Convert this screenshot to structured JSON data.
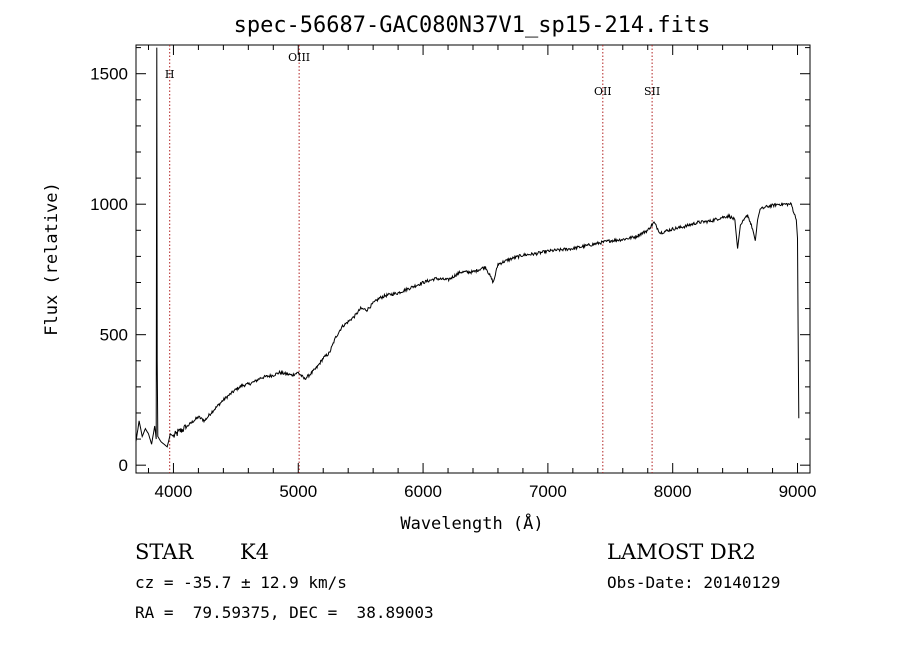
{
  "chart_data": {
    "type": "line",
    "title": "spec-56687-GAC080N37V1_sp15-214.fits",
    "xlabel": "Wavelength (Å)",
    "ylabel": "Flux (relative)",
    "xlim": [
      3700,
      9100
    ],
    "ylim": [
      -30,
      1610
    ],
    "xticks": [
      4000,
      5000,
      6000,
      7000,
      8000,
      9000
    ],
    "yticks": [
      0,
      500,
      1000,
      1500
    ],
    "grid": false,
    "series": [
      {
        "x": [
          3700,
          3725,
          3750,
          3775,
          3800,
          3825,
          3850,
          3862,
          3867,
          3870,
          3875,
          3900,
          3925,
          3950,
          3975,
          4000,
          4050,
          4100,
          4150,
          4200,
          4250,
          4300,
          4350,
          4400,
          4450,
          4500,
          4550,
          4600,
          4650,
          4700,
          4750,
          4800,
          4850,
          4900,
          4950,
          5000,
          5050,
          5100,
          5150,
          5200,
          5250,
          5300,
          5350,
          5400,
          5450,
          5500,
          5550,
          5600,
          5650,
          5700,
          5750,
          5800,
          5850,
          5900,
          5950,
          6000,
          6100,
          6200,
          6300,
          6400,
          6500,
          6563,
          6600,
          6700,
          6800,
          6900,
          7000,
          7100,
          7200,
          7300,
          7400,
          7500,
          7600,
          7700,
          7800,
          7850,
          7900,
          8000,
          8100,
          8200,
          8300,
          8400,
          8450,
          8498,
          8520,
          8542,
          8560,
          8600,
          8640,
          8662,
          8680,
          8700,
          8750,
          8800,
          8850,
          8900,
          8950,
          8990,
          9000,
          9010
        ],
        "y": [
          90,
          170,
          110,
          140,
          120,
          80,
          150,
          100,
          1600,
          400,
          110,
          90,
          80,
          70,
          120,
          110,
          130,
          145,
          165,
          185,
          170,
          200,
          225,
          250,
          270,
          290,
          305,
          310,
          320,
          335,
          340,
          345,
          355,
          350,
          345,
          355,
          330,
          350,
          375,
          410,
          430,
          490,
          530,
          550,
          570,
          600,
          595,
          620,
          640,
          650,
          655,
          660,
          670,
          680,
          690,
          700,
          715,
          710,
          740,
          740,
          760,
          700,
          770,
          790,
          805,
          810,
          820,
          825,
          830,
          840,
          850,
          860,
          865,
          875,
          900,
          930,
          890,
          905,
          915,
          930,
          935,
          950,
          955,
          940,
          830,
          920,
          930,
          960,
          905,
          860,
          940,
          980,
          990,
          995,
          1000,
          1000,
          1000,
          940,
          870,
          180
        ]
      }
    ],
    "annotations": [
      {
        "label": "H",
        "x": 3970
      },
      {
        "label": "OIII",
        "x": 5007
      },
      {
        "label": "OII",
        "x": 7440
      },
      {
        "label": "SII",
        "x": 7835
      }
    ]
  },
  "info": {
    "class": "STAR",
    "subclass": "K4",
    "survey": "LAMOST DR2",
    "redshift": "cz = -35.7 ± 12.9 km/s",
    "obs_date": "Obs-Date: 20140129",
    "coords": "RA =  79.59375, DEC =  38.89003"
  }
}
